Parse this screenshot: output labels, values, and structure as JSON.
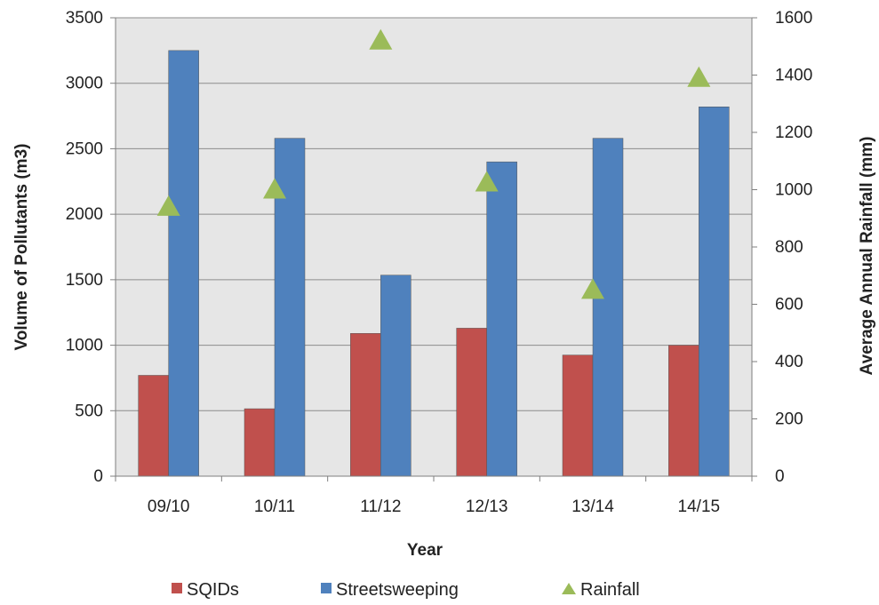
{
  "chart_data": {
    "type": "bar",
    "title": "",
    "xlabel": "Year",
    "ylabel": "Volume of Pollutants (m3)",
    "y2label": "Average Annual Rainfall (mm)",
    "categories": [
      "09/10",
      "10/11",
      "11/12",
      "12/13",
      "13/14",
      "14/15"
    ],
    "ylim": [
      0,
      3500
    ],
    "y2lim": [
      0,
      1600
    ],
    "yticks": [
      0,
      500,
      1000,
      1500,
      2000,
      2500,
      3000,
      3500
    ],
    "y2ticks": [
      0,
      200,
      400,
      600,
      800,
      1000,
      1200,
      1400,
      1600
    ],
    "grid": true,
    "legend_position": "bottom",
    "series": [
      {
        "name": "SQIDs",
        "type": "bar",
        "axis": "left",
        "color": "#c0504d",
        "values": [
          770,
          515,
          1090,
          1130,
          925,
          1000
        ]
      },
      {
        "name": "Streetsweeping",
        "type": "bar",
        "axis": "left",
        "color": "#4f81bd",
        "values": [
          3250,
          2580,
          1535,
          2400,
          2580,
          2820
        ]
      },
      {
        "name": "Rainfall",
        "type": "scatter",
        "marker": "triangle",
        "axis": "right",
        "color": "#9bbb59",
        "values": [
          940,
          1000,
          1520,
          1025,
          650,
          1390
        ]
      }
    ]
  }
}
